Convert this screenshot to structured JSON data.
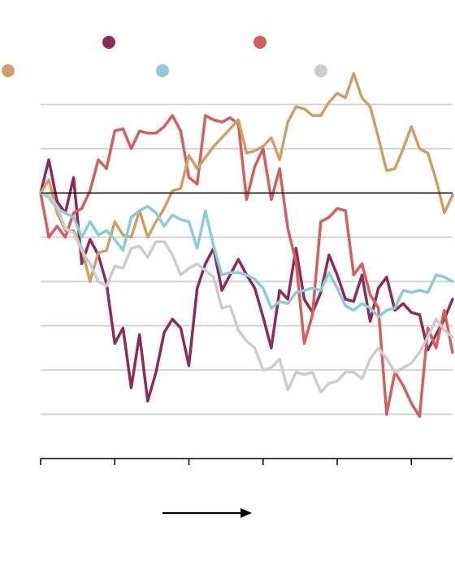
{
  "chart_data": {
    "type": "line",
    "title": "",
    "xlabel": "",
    "ylabel": "",
    "baseline": 0,
    "ylim": [
      -6,
      3
    ],
    "xlim": [
      0,
      50
    ],
    "grid": true,
    "legend": "top",
    "gridlines": [
      2,
      1,
      0,
      -1,
      -2,
      -3,
      -4,
      -5
    ],
    "x_ticks": [
      0,
      9,
      18,
      27,
      36,
      45
    ],
    "series": [
      {
        "color": "#8a2d5a",
        "values": [
          0,
          0.75,
          -0.2,
          -0.45,
          0.35,
          -1.6,
          -1.05,
          -1.4,
          -2.05,
          -3.4,
          -3.05,
          -4.4,
          -3.2,
          -4.7,
          -4.05,
          -3.15,
          -2.85,
          -3.05,
          -3.9,
          -2.15,
          -1.6,
          -1.25,
          -2.2,
          -1.85,
          -1.5,
          -1.85,
          -2.15,
          -2.8,
          -3.5,
          -2.2,
          -2.4,
          -1.25,
          -2.4,
          -2.7,
          -2.25,
          -1.4,
          -1.85,
          -2.4,
          -2.45,
          -1.85,
          -2.9,
          -2.15,
          -1.9,
          -2.65,
          -2.5,
          -2.7,
          -2.75,
          -3.55,
          -3.2,
          -2.85,
          -2.4
        ]
      },
      {
        "color": "#d45f5f",
        "values": [
          0,
          -1,
          -0.75,
          -1,
          -0.45,
          -0.35,
          0.05,
          0.75,
          0.55,
          1.4,
          1.45,
          1.0,
          1.4,
          1.35,
          1.35,
          1.5,
          1.75,
          1.4,
          0.35,
          0.2,
          1.75,
          1.65,
          1.6,
          1.7,
          1.55,
          -0.15,
          0.6,
          1.0,
          -0.15,
          0.55,
          -0.8,
          -1.55,
          -3.4,
          -2.75,
          -0.65,
          -0.55,
          -0.35,
          -0.4,
          -1.85,
          -1.6,
          -2.3,
          -2.6,
          -5.0,
          -4.05,
          -4.35,
          -4.75,
          -5.05,
          -3.05,
          -3.5,
          -2.65,
          -3.6
        ]
      },
      {
        "color": "#c9a16a",
        "values": [
          0,
          0.3,
          -0.45,
          -0.85,
          -0.85,
          -1.25,
          -2.0,
          -1.35,
          -1.3,
          -0.65,
          -0.95,
          -1.0,
          -0.4,
          -1.0,
          -0.65,
          -0.35,
          0.05,
          0.1,
          0.85,
          0.55,
          0.8,
          1.05,
          1.25,
          1.45,
          1.65,
          0.9,
          0.95,
          1.05,
          1.25,
          0.75,
          1.6,
          1.95,
          1.9,
          1.75,
          1.75,
          2.05,
          2.25,
          2.15,
          2.7,
          2.15,
          1.95,
          1.25,
          0.5,
          0.55,
          1.0,
          1.5,
          1.0,
          0.9,
          0.3,
          -0.45,
          -0.05
        ]
      },
      {
        "color": "#8ecbd2",
        "values": [
          0,
          -0.1,
          -0.35,
          -0.45,
          -0.55,
          -1.0,
          -0.65,
          -0.95,
          -0.85,
          -1.05,
          -1.3,
          -0.55,
          -0.4,
          -0.3,
          -0.45,
          -0.75,
          -0.5,
          -0.6,
          -0.65,
          -1.25,
          -0.4,
          -1.2,
          -1.85,
          -1.8,
          -1.8,
          -1.85,
          -1.95,
          -2.15,
          -2.6,
          -2.45,
          -2.5,
          -2.25,
          -2.2,
          -2.15,
          -2.2,
          -1.8,
          -2.15,
          -2.55,
          -2.65,
          -2.5,
          -2.6,
          -2.8,
          -2.65,
          -2.6,
          -2.2,
          -2.25,
          -2.2,
          -2.25,
          -1.85,
          -1.9,
          -2.0
        ]
      },
      {
        "color": "#cccccc",
        "values": [
          0,
          -0.05,
          -0.3,
          -0.8,
          -0.9,
          -1.3,
          -1.6,
          -2.0,
          -2.1,
          -1.65,
          -1.7,
          -1.25,
          -1.2,
          -1.45,
          -1.1,
          -1.1,
          -1.4,
          -1.85,
          -1.7,
          -1.6,
          -1.75,
          -1.9,
          -2.6,
          -2.55,
          -3.1,
          -3.35,
          -3.5,
          -4.0,
          -3.95,
          -3.75,
          -4.45,
          -4.05,
          -4.1,
          -4.05,
          -4.5,
          -4.3,
          -4.25,
          -4.05,
          -4.05,
          -4.2,
          -3.75,
          -3.5,
          -3.75,
          -4.05,
          -3.95,
          -3.85,
          -3.6,
          -3.25,
          -2.85,
          -3.1,
          -3.25
        ]
      }
    ]
  }
}
